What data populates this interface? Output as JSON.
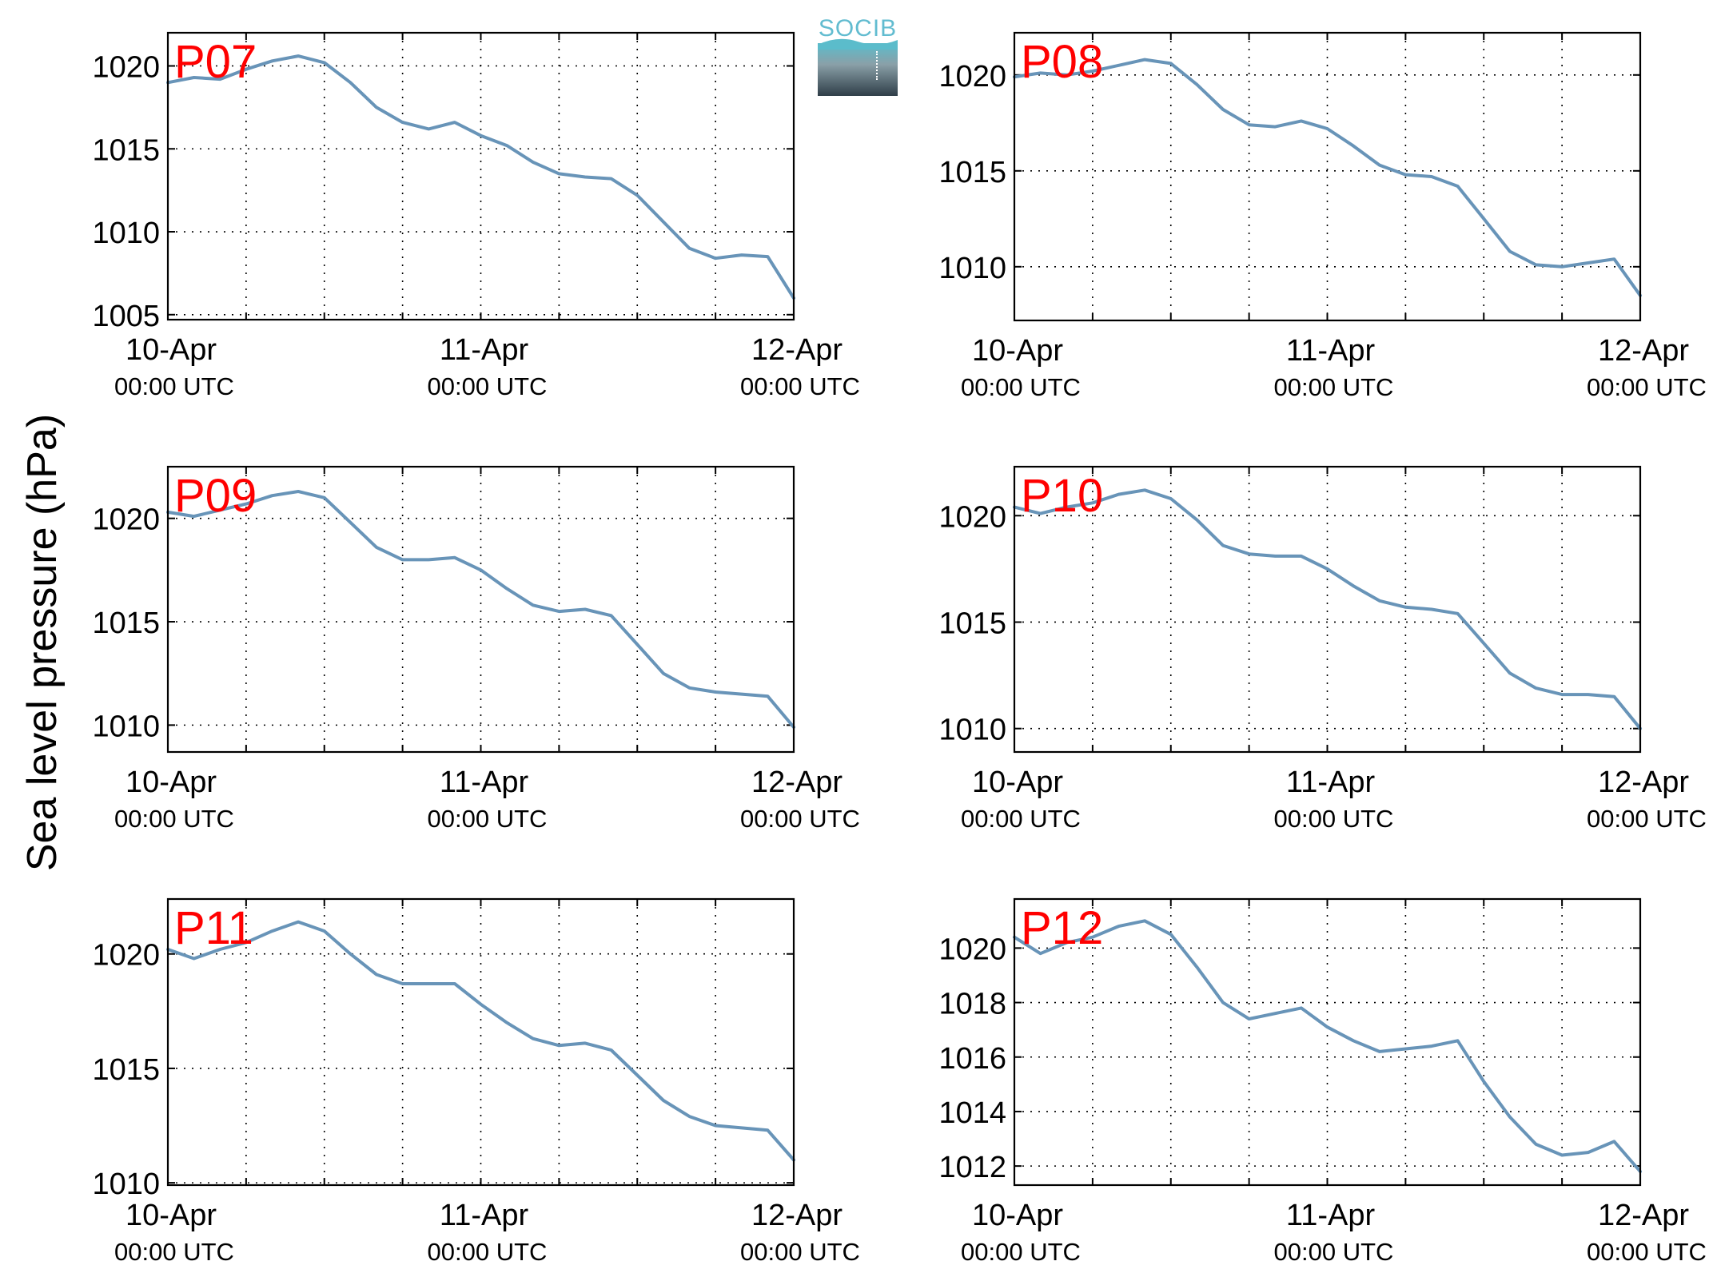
{
  "figure": {
    "ylabel": "Sea level pressure (hPa)",
    "logo_text": "SOCIB",
    "colors": {
      "line": "#6894b8",
      "panel_label": "#ff0000",
      "grid": "#000000"
    }
  },
  "chart_data": [
    {
      "type": "line",
      "label": "P07",
      "x_ticks": [
        {
          "date": "10-Apr",
          "time": "00:00 UTC"
        },
        {
          "date": "11-Apr",
          "time": "00:00 UTC"
        },
        {
          "date": "12-Apr",
          "time": "00:00 UTC"
        }
      ],
      "xlim": [
        "2015-04-10T00:00",
        "2015-04-12T00:00"
      ],
      "ylim": [
        1004.7,
        1022
      ],
      "yticks": [
        1005,
        1010,
        1015,
        1020
      ],
      "grid": true,
      "series": [
        {
          "x": [
            "2015-04-10T00:00",
            "2015-04-10T02:00",
            "2015-04-10T04:00",
            "2015-04-10T06:00",
            "2015-04-10T08:00",
            "2015-04-10T10:00",
            "2015-04-10T12:00",
            "2015-04-10T14:00",
            "2015-04-10T16:00",
            "2015-04-10T18:00",
            "2015-04-10T20:00",
            "2015-04-10T22:00",
            "2015-04-11T00:00",
            "2015-04-11T02:00",
            "2015-04-11T04:00",
            "2015-04-11T06:00",
            "2015-04-11T08:00",
            "2015-04-11T10:00",
            "2015-04-11T12:00",
            "2015-04-11T14:00",
            "2015-04-11T16:00",
            "2015-04-11T18:00",
            "2015-04-11T20:00",
            "2015-04-11T22:00",
            "2015-04-12T00:00"
          ],
          "values": [
            1019.0,
            1019.3,
            1019.2,
            1019.8,
            1020.3,
            1020.6,
            1020.2,
            1019.0,
            1017.5,
            1016.6,
            1016.2,
            1016.6,
            1015.8,
            1015.2,
            1014.2,
            1013.5,
            1013.3,
            1013.2,
            1012.2,
            1010.6,
            1009.0,
            1008.4,
            1008.6,
            1008.5,
            1006.0
          ]
        }
      ]
    },
    {
      "type": "line",
      "label": "P08",
      "x_ticks": [
        {
          "date": "10-Apr",
          "time": "00:00 UTC"
        },
        {
          "date": "11-Apr",
          "time": "00:00 UTC"
        },
        {
          "date": "12-Apr",
          "time": "00:00 UTC"
        }
      ],
      "xlim": [
        "2015-04-10T00:00",
        "2015-04-12T00:00"
      ],
      "ylim": [
        1007.2,
        1022.2
      ],
      "yticks": [
        1010,
        1015,
        1020
      ],
      "grid": true,
      "series": [
        {
          "x": [
            "2015-04-10T00:00",
            "2015-04-10T02:00",
            "2015-04-10T04:00",
            "2015-04-10T06:00",
            "2015-04-10T08:00",
            "2015-04-10T10:00",
            "2015-04-10T12:00",
            "2015-04-10T14:00",
            "2015-04-10T16:00",
            "2015-04-10T18:00",
            "2015-04-10T20:00",
            "2015-04-10T22:00",
            "2015-04-11T00:00",
            "2015-04-11T02:00",
            "2015-04-11T04:00",
            "2015-04-11T06:00",
            "2015-04-11T08:00",
            "2015-04-11T10:00",
            "2015-04-11T12:00",
            "2015-04-11T14:00",
            "2015-04-11T16:00",
            "2015-04-11T18:00",
            "2015-04-11T20:00",
            "2015-04-11T22:00",
            "2015-04-12T00:00"
          ],
          "values": [
            1019.9,
            1020.1,
            1020.0,
            1020.2,
            1020.5,
            1020.8,
            1020.6,
            1019.5,
            1018.2,
            1017.4,
            1017.3,
            1017.6,
            1017.2,
            1016.3,
            1015.3,
            1014.8,
            1014.7,
            1014.2,
            1012.5,
            1010.8,
            1010.1,
            1010.0,
            1010.2,
            1010.4,
            1008.5
          ]
        }
      ]
    },
    {
      "type": "line",
      "label": "P09",
      "x_ticks": [
        {
          "date": "10-Apr",
          "time": "00:00 UTC"
        },
        {
          "date": "11-Apr",
          "time": "00:00 UTC"
        },
        {
          "date": "12-Apr",
          "time": "00:00 UTC"
        }
      ],
      "xlim": [
        "2015-04-10T00:00",
        "2015-04-12T00:00"
      ],
      "ylim": [
        1008.7,
        1022.5
      ],
      "yticks": [
        1010,
        1015,
        1020
      ],
      "grid": true,
      "series": [
        {
          "x": [
            "2015-04-10T00:00",
            "2015-04-10T02:00",
            "2015-04-10T04:00",
            "2015-04-10T06:00",
            "2015-04-10T08:00",
            "2015-04-10T10:00",
            "2015-04-10T12:00",
            "2015-04-10T14:00",
            "2015-04-10T16:00",
            "2015-04-10T18:00",
            "2015-04-10T20:00",
            "2015-04-10T22:00",
            "2015-04-11T00:00",
            "2015-04-11T02:00",
            "2015-04-11T04:00",
            "2015-04-11T06:00",
            "2015-04-11T08:00",
            "2015-04-11T10:00",
            "2015-04-11T12:00",
            "2015-04-11T14:00",
            "2015-04-11T16:00",
            "2015-04-11T18:00",
            "2015-04-11T20:00",
            "2015-04-11T22:00",
            "2015-04-12T00:00"
          ],
          "values": [
            1020.3,
            1020.1,
            1020.4,
            1020.7,
            1021.1,
            1021.3,
            1021.0,
            1019.8,
            1018.6,
            1018.0,
            1018.0,
            1018.1,
            1017.5,
            1016.6,
            1015.8,
            1015.5,
            1015.6,
            1015.3,
            1013.9,
            1012.5,
            1011.8,
            1011.6,
            1011.5,
            1011.4,
            1009.9
          ]
        }
      ]
    },
    {
      "type": "line",
      "label": "P10",
      "x_ticks": [
        {
          "date": "10-Apr",
          "time": "00:00 UTC"
        },
        {
          "date": "11-Apr",
          "time": "00:00 UTC"
        },
        {
          "date": "12-Apr",
          "time": "00:00 UTC"
        }
      ],
      "xlim": [
        "2015-04-10T00:00",
        "2015-04-12T00:00"
      ],
      "ylim": [
        1008.9,
        1022.3
      ],
      "yticks": [
        1010,
        1015,
        1020
      ],
      "grid": true,
      "series": [
        {
          "x": [
            "2015-04-10T00:00",
            "2015-04-10T02:00",
            "2015-04-10T04:00",
            "2015-04-10T06:00",
            "2015-04-10T08:00",
            "2015-04-10T10:00",
            "2015-04-10T12:00",
            "2015-04-10T14:00",
            "2015-04-10T16:00",
            "2015-04-10T18:00",
            "2015-04-10T20:00",
            "2015-04-10T22:00",
            "2015-04-11T00:00",
            "2015-04-11T02:00",
            "2015-04-11T04:00",
            "2015-04-11T06:00",
            "2015-04-11T08:00",
            "2015-04-11T10:00",
            "2015-04-11T12:00",
            "2015-04-11T14:00",
            "2015-04-11T16:00",
            "2015-04-11T18:00",
            "2015-04-11T20:00",
            "2015-04-11T22:00",
            "2015-04-12T00:00"
          ],
          "values": [
            1020.4,
            1020.1,
            1020.4,
            1020.6,
            1021.0,
            1021.2,
            1020.8,
            1019.8,
            1018.6,
            1018.2,
            1018.1,
            1018.1,
            1017.5,
            1016.7,
            1016.0,
            1015.7,
            1015.6,
            1015.4,
            1014.0,
            1012.6,
            1011.9,
            1011.6,
            1011.6,
            1011.5,
            1010.0
          ]
        }
      ]
    },
    {
      "type": "line",
      "label": "P11",
      "x_ticks": [
        {
          "date": "10-Apr",
          "time": "00:00 UTC"
        },
        {
          "date": "11-Apr",
          "time": "00:00 UTC"
        },
        {
          "date": "12-Apr",
          "time": "00:00 UTC"
        }
      ],
      "xlim": [
        "2015-04-10T00:00",
        "2015-04-12T00:00"
      ],
      "ylim": [
        1009.9,
        1022.4
      ],
      "yticks": [
        1010,
        1015,
        1020
      ],
      "grid": true,
      "series": [
        {
          "x": [
            "2015-04-10T00:00",
            "2015-04-10T02:00",
            "2015-04-10T04:00",
            "2015-04-10T06:00",
            "2015-04-10T08:00",
            "2015-04-10T10:00",
            "2015-04-10T12:00",
            "2015-04-10T14:00",
            "2015-04-10T16:00",
            "2015-04-10T18:00",
            "2015-04-10T20:00",
            "2015-04-10T22:00",
            "2015-04-11T00:00",
            "2015-04-11T02:00",
            "2015-04-11T04:00",
            "2015-04-11T06:00",
            "2015-04-11T08:00",
            "2015-04-11T10:00",
            "2015-04-11T12:00",
            "2015-04-11T14:00",
            "2015-04-11T16:00",
            "2015-04-11T18:00",
            "2015-04-11T20:00",
            "2015-04-11T22:00",
            "2015-04-12T00:00"
          ],
          "values": [
            1020.2,
            1019.8,
            1020.2,
            1020.5,
            1021.0,
            1021.4,
            1021.0,
            1020.0,
            1019.1,
            1018.7,
            1018.7,
            1018.7,
            1017.8,
            1017.0,
            1016.3,
            1016.0,
            1016.1,
            1015.8,
            1014.7,
            1013.6,
            1012.9,
            1012.5,
            1012.4,
            1012.3,
            1011.0
          ]
        }
      ]
    },
    {
      "type": "line",
      "label": "P12",
      "x_ticks": [
        {
          "date": "10-Apr",
          "time": "00:00 UTC"
        },
        {
          "date": "11-Apr",
          "time": "00:00 UTC"
        },
        {
          "date": "12-Apr",
          "time": "00:00 UTC"
        }
      ],
      "xlim": [
        "2015-04-10T00:00",
        "2015-04-12T00:00"
      ],
      "ylim": [
        1011.3,
        1021.8
      ],
      "yticks": [
        1012,
        1014,
        1016,
        1018,
        1020
      ],
      "grid": true,
      "series": [
        {
          "x": [
            "2015-04-10T00:00",
            "2015-04-10T02:00",
            "2015-04-10T04:00",
            "2015-04-10T06:00",
            "2015-04-10T08:00",
            "2015-04-10T10:00",
            "2015-04-10T12:00",
            "2015-04-10T14:00",
            "2015-04-10T16:00",
            "2015-04-10T18:00",
            "2015-04-10T20:00",
            "2015-04-10T22:00",
            "2015-04-11T00:00",
            "2015-04-11T02:00",
            "2015-04-11T04:00",
            "2015-04-11T06:00",
            "2015-04-11T08:00",
            "2015-04-11T10:00",
            "2015-04-11T12:00",
            "2015-04-11T14:00",
            "2015-04-11T16:00",
            "2015-04-11T18:00",
            "2015-04-11T20:00",
            "2015-04-11T22:00",
            "2015-04-12T00:00"
          ],
          "values": [
            1020.4,
            1019.8,
            1020.2,
            1020.4,
            1020.8,
            1021.0,
            1020.5,
            1019.3,
            1018.0,
            1017.4,
            1017.6,
            1017.8,
            1017.1,
            1016.6,
            1016.2,
            1016.3,
            1016.4,
            1016.6,
            1015.1,
            1013.8,
            1012.8,
            1012.4,
            1012.5,
            1012.9,
            1011.8
          ]
        }
      ]
    }
  ]
}
